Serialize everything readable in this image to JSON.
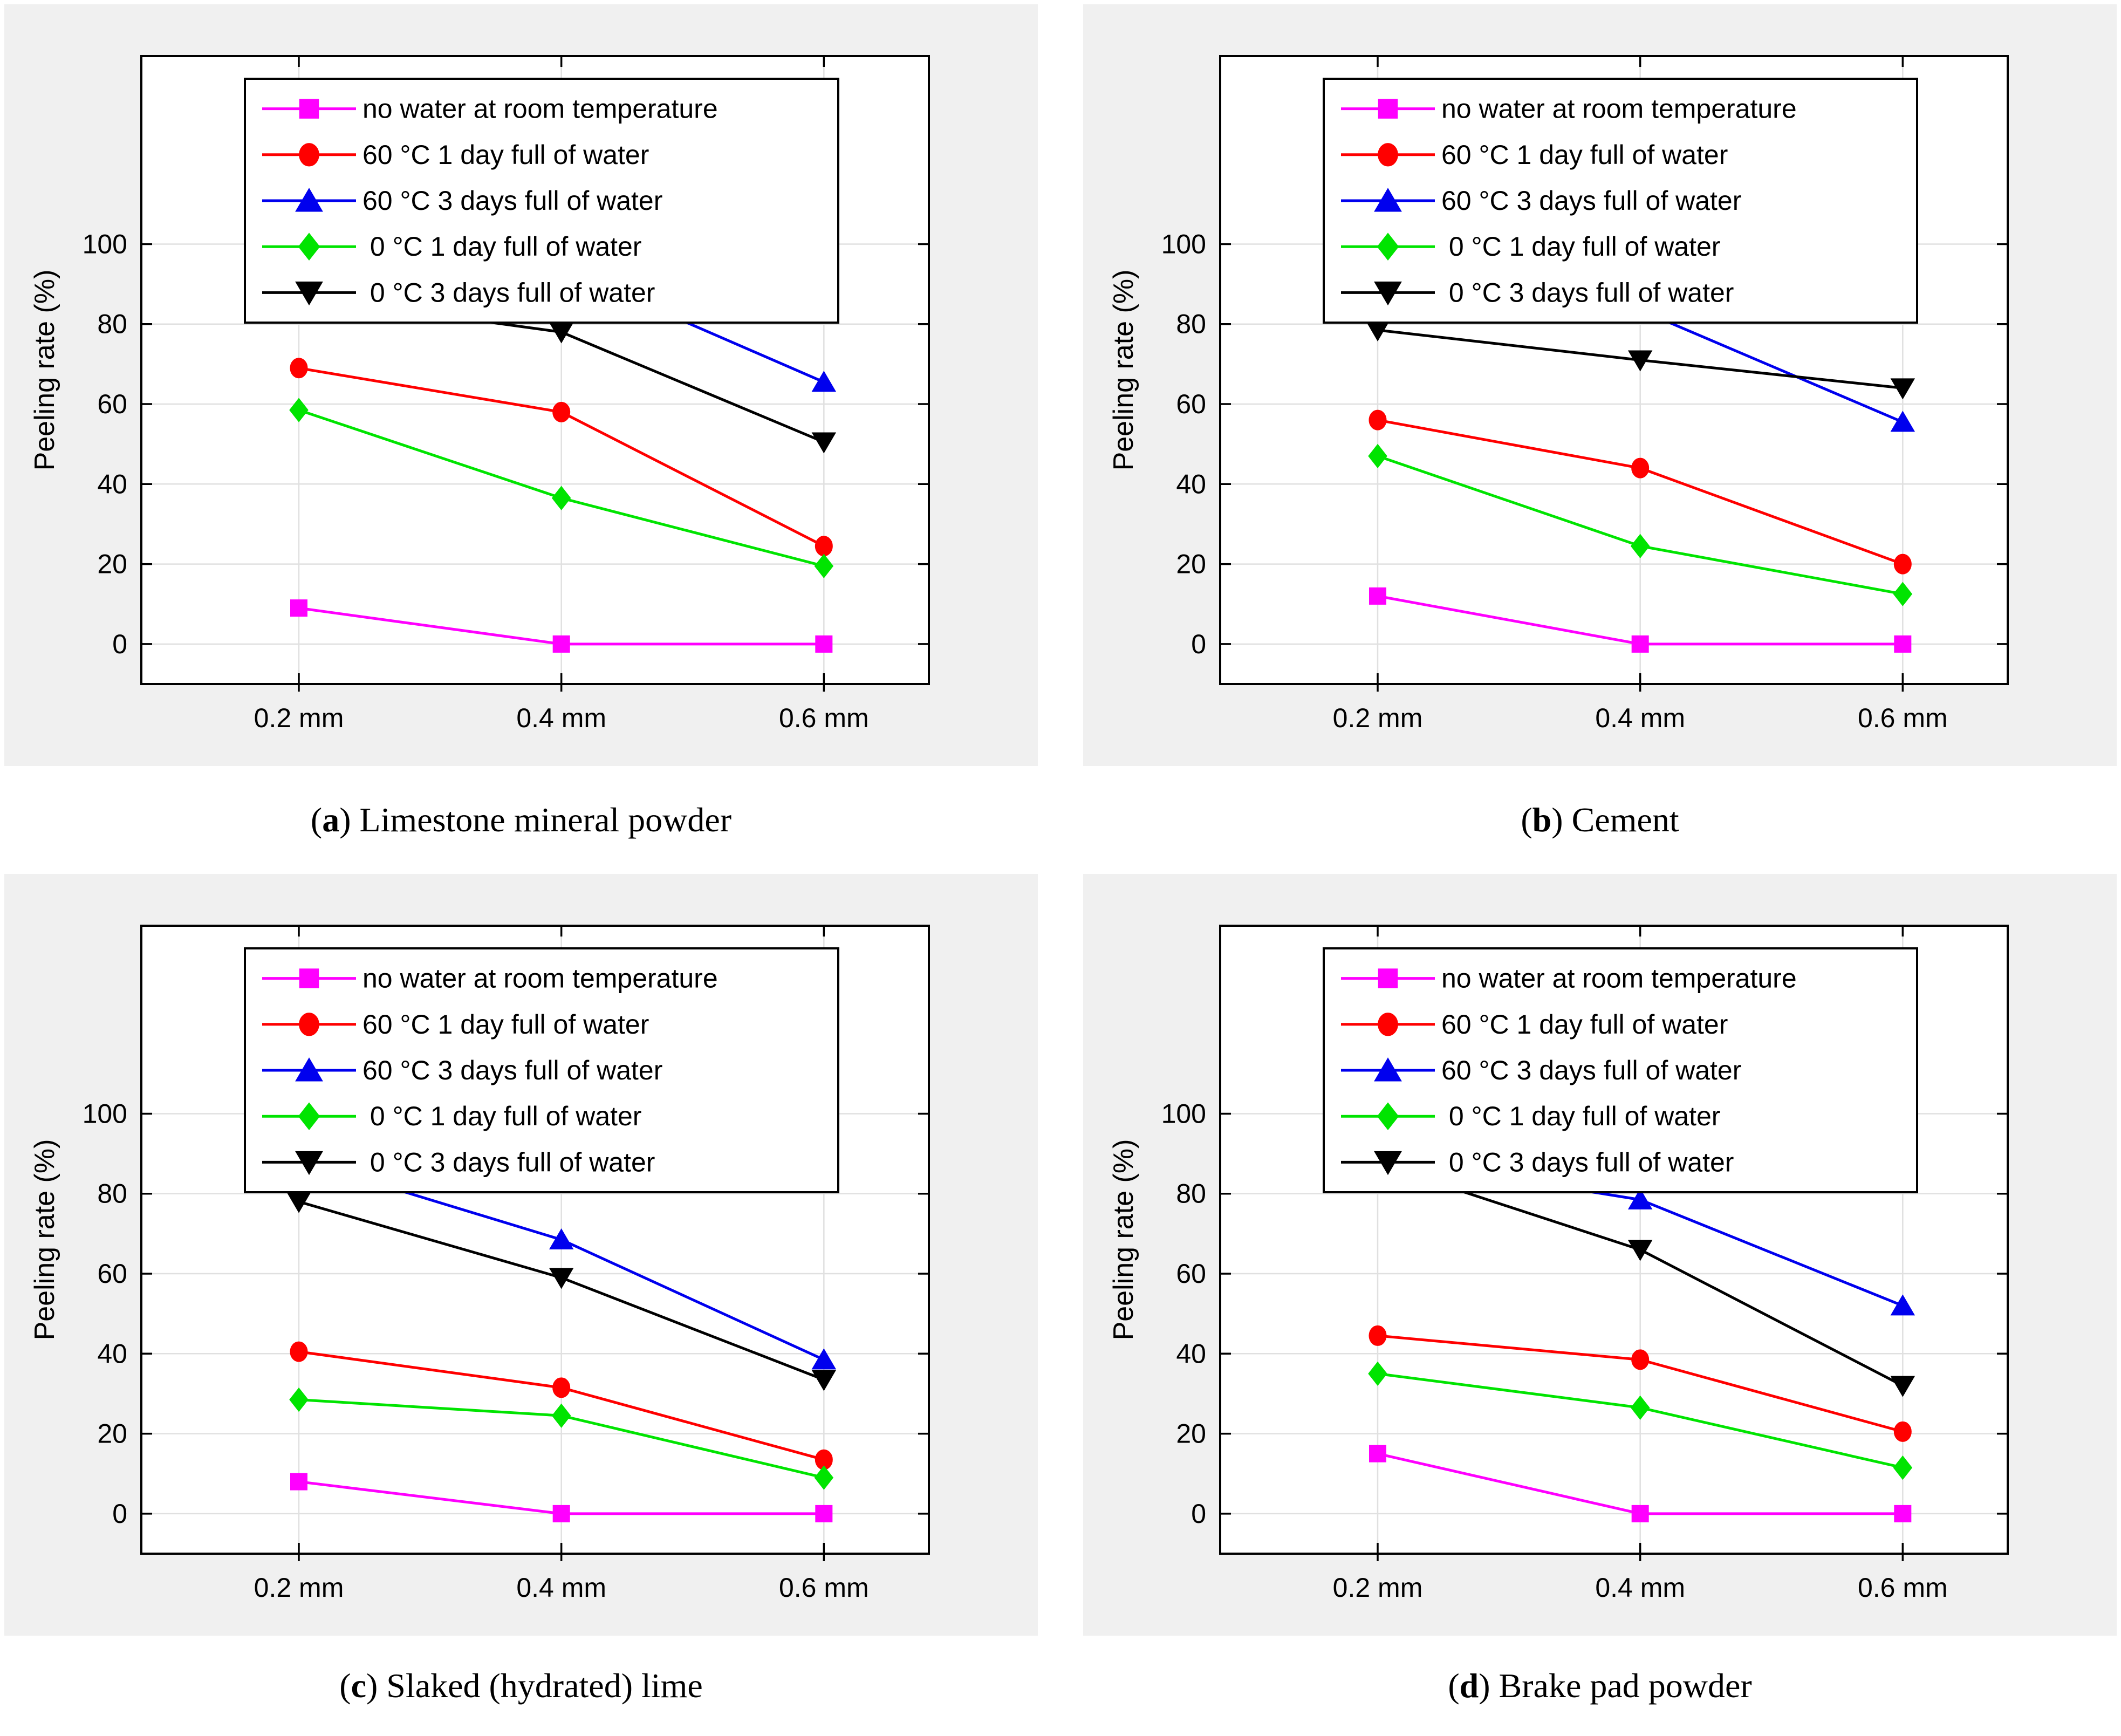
{
  "ui": {
    "paren_open": "(",
    "paren_close": ")",
    "caption_space": " "
  },
  "axes": {
    "ylabel": "Peeling rate (%)",
    "y_ticks": [
      0,
      20,
      40,
      60,
      80,
      100
    ],
    "x_tick_values": [
      0.2,
      0.4,
      0.6
    ],
    "x_tick_labels": [
      "0.2 mm",
      "0.4 mm",
      "0.6 mm"
    ],
    "ylim": [
      -10,
      147
    ],
    "xlim": [
      0.08,
      0.68
    ],
    "grid": "both",
    "grid_color": "#e0e0e0",
    "plot_bg": "#ffffff",
    "panel_bg": "#f0f0f0",
    "box_color": "#000000"
  },
  "legend": {
    "position": "top-left-inside",
    "entries": [
      {
        "label": "no water at room temperature",
        "color": "#ff00ff",
        "marker": "square"
      },
      {
        "label": "60 °C 1 day full of water",
        "color": "#ff0000",
        "marker": "circle"
      },
      {
        "label": "60 °C 3 days full of water",
        "color": "#0000ee",
        "marker": "triangle-up"
      },
      {
        "label": " 0 °C 1 day full of water",
        "color": "#00e400",
        "marker": "diamond"
      },
      {
        "label": " 0 °C 3 days full of water",
        "color": "#000000",
        "marker": "triangle-down"
      }
    ]
  },
  "chart_data": [
    {
      "id": "a",
      "type": "line",
      "caption_letter": "a",
      "caption": "Limestone mineral powder",
      "categories": [
        "0.2 mm",
        "0.4 mm",
        "0.6 mm"
      ],
      "x": [
        0.2,
        0.4,
        0.6
      ],
      "ylabel": "Peeling rate (%)",
      "series": [
        {
          "name": "no water at room temperature",
          "values": [
            9,
            0,
            0
          ]
        },
        {
          "name": "60 °C 1 day full of water",
          "values": [
            69,
            58,
            24.5
          ]
        },
        {
          "name": "60 °C 3 days full of water",
          "values": [
            97,
            94,
            65.5
          ]
        },
        {
          "name": "0 °C 1 day full of water",
          "values": [
            58.5,
            36.5,
            19.5
          ]
        },
        {
          "name": "0 °C 3 days full of water",
          "values": [
            87,
            78,
            50.5
          ]
        }
      ]
    },
    {
      "id": "b",
      "type": "line",
      "caption_letter": "b",
      "caption": "Cement",
      "categories": [
        "0.2 mm",
        "0.4 mm",
        "0.6 mm"
      ],
      "x": [
        0.2,
        0.4,
        0.6
      ],
      "ylabel": "Peeling rate (%)",
      "series": [
        {
          "name": "no water at room temperature",
          "values": [
            12,
            0,
            0
          ]
        },
        {
          "name": "60 °C 1 day full of water",
          "values": [
            56,
            44,
            20
          ]
        },
        {
          "name": "60 °C 3 days full of water",
          "values": [
            87,
            83.5,
            55.5
          ]
        },
        {
          "name": "0 °C 1 day full of water",
          "values": [
            47,
            24.5,
            12.5
          ]
        },
        {
          "name": "0 °C 3 days full of water",
          "values": [
            78.5,
            71,
            64
          ]
        }
      ]
    },
    {
      "id": "c",
      "type": "line",
      "caption_letter": "c",
      "caption": "Slaked (hydrated) lime",
      "categories": [
        "0.2 mm",
        "0.4 mm",
        "0.6 mm"
      ],
      "x": [
        0.2,
        0.4,
        0.6
      ],
      "ylabel": "Peeling rate (%)",
      "series": [
        {
          "name": "no water at room temperature",
          "values": [
            8,
            0,
            0
          ]
        },
        {
          "name": "60 °C 1 day full of water",
          "values": [
            40.5,
            31.5,
            13.5
          ]
        },
        {
          "name": "60 °C 3 days full of water",
          "values": [
            88.5,
            68.5,
            38.5
          ]
        },
        {
          "name": "0 °C 1 day full of water",
          "values": [
            28.5,
            24.5,
            9
          ]
        },
        {
          "name": "0 °C 3 days full of water",
          "values": [
            78,
            59,
            33.5
          ]
        }
      ]
    },
    {
      "id": "d",
      "type": "line",
      "caption_letter": "d",
      "caption": "Brake pad powder",
      "categories": [
        "0.2 mm",
        "0.4 mm",
        "0.6 mm"
      ],
      "x": [
        0.2,
        0.4,
        0.6
      ],
      "ylabel": "Peeling rate (%)",
      "series": [
        {
          "name": "no water at room temperature",
          "values": [
            15,
            0,
            0
          ]
        },
        {
          "name": "60 °C 1 day full of water",
          "values": [
            44.5,
            38.5,
            20.5
          ]
        },
        {
          "name": "60 °C 3 days full of water",
          "values": [
            89,
            78.5,
            52
          ]
        },
        {
          "name": "0 °C 1 day full of water",
          "values": [
            35,
            26.5,
            11.5
          ]
        },
        {
          "name": "0 °C 3 days full of water",
          "values": [
            87.5,
            66,
            32
          ]
        }
      ]
    }
  ]
}
